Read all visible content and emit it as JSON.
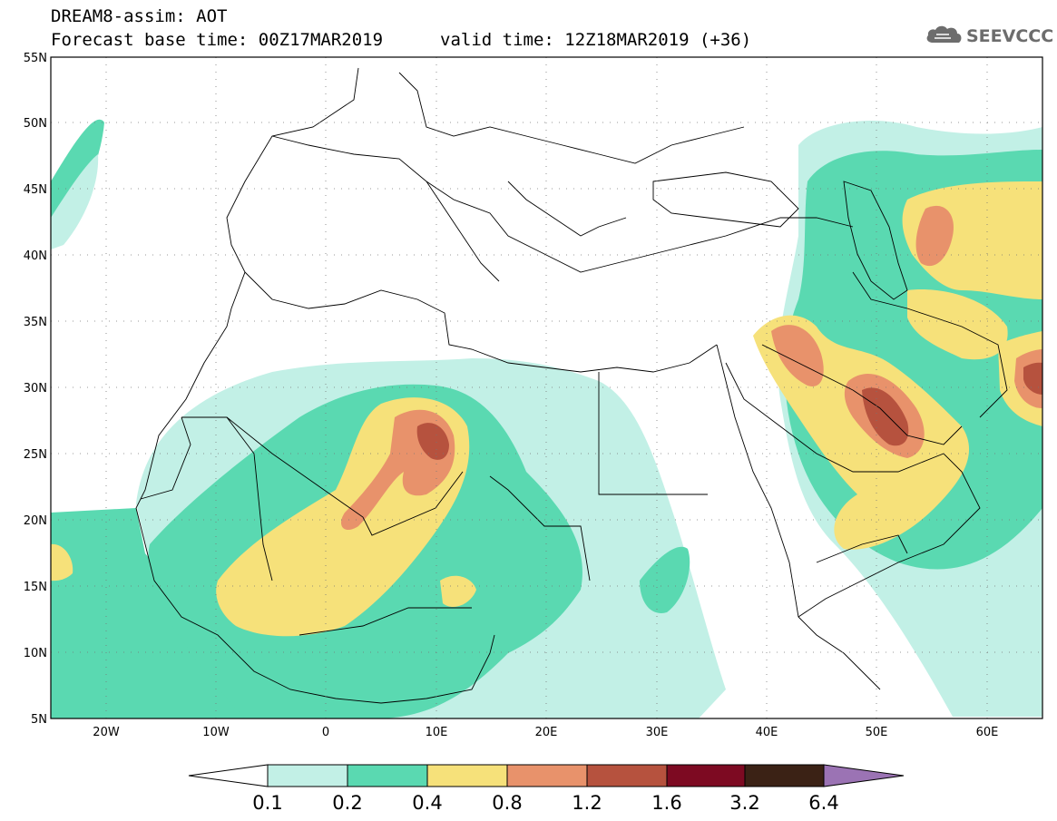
{
  "header": {
    "title_line_1": "DREAM8-assim: AOT",
    "title_line_2": "Forecast base time: 00Z17MAR2019",
    "valid_time": "valid time: 12Z18MAR2019 (+36)",
    "logo_text": "SEEVCCC",
    "logo_icon": "cloud-icon"
  },
  "map": {
    "lon_range": [
      -25,
      65
    ],
    "lat_range": [
      5,
      55
    ],
    "lat_ticks": [
      "5N",
      "10N",
      "15N",
      "20N",
      "25N",
      "30N",
      "35N",
      "40N",
      "45N",
      "50N",
      "55N"
    ],
    "lon_ticks": [
      "20W",
      "10W",
      "0",
      "10E",
      "20E",
      "30E",
      "40E",
      "50E",
      "60E"
    ],
    "gridlines": "dotted"
  },
  "colorbar": {
    "labels": [
      "0.1",
      "0.2",
      "0.4",
      "0.8",
      "1.2",
      "1.6",
      "3.2",
      "6.4"
    ],
    "colors": [
      "#ffffff",
      "#c2f0e6",
      "#5ad9b1",
      "#f6e17a",
      "#e8926b",
      "#b6523e",
      "#7d0a22",
      "#3b2215",
      "#9b73b4"
    ]
  }
}
